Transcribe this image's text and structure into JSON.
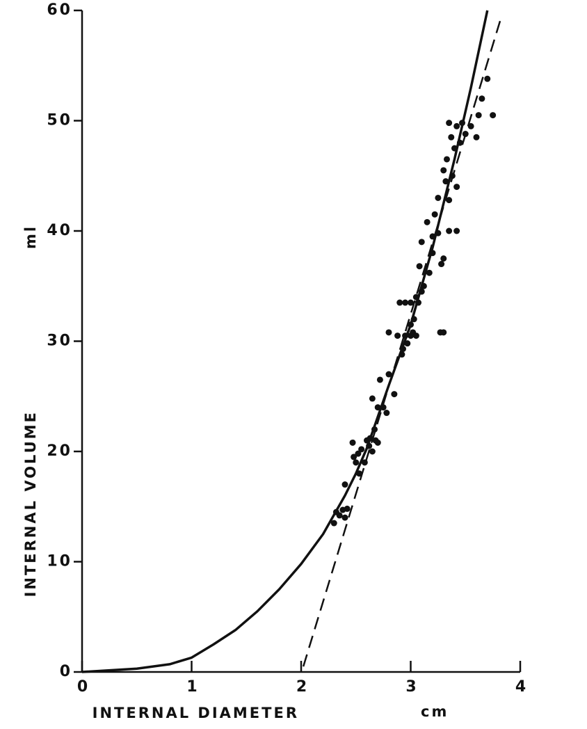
{
  "chart_data": {
    "type": "scatter",
    "x_label": "INTERNAL   DIAMETER",
    "x_unit": "cm",
    "y_label": "INTERNAL   VOLUME",
    "y_unit": "ml",
    "xlim": [
      0,
      4
    ],
    "ylim": [
      0,
      60
    ],
    "xticks": [
      0,
      1,
      2,
      3,
      4
    ],
    "yticks": [
      0,
      10,
      20,
      30,
      40,
      50,
      60
    ],
    "grid": false,
    "series": [
      {
        "style": "points",
        "color": "#111111",
        "x": [
          2.3,
          2.32,
          2.35,
          2.38,
          2.4,
          2.42,
          2.4,
          2.47,
          2.48,
          2.5,
          2.52,
          2.53,
          2.55,
          2.58,
          2.6,
          2.62,
          2.63,
          2.65,
          2.67,
          2.68,
          2.7,
          2.65,
          2.7,
          2.72,
          2.75,
          2.78,
          2.8,
          2.8,
          2.85,
          2.88,
          2.9,
          2.92,
          2.93,
          2.95,
          2.95,
          2.97,
          3.0,
          3.0,
          3.0,
          3.02,
          3.03,
          3.05,
          3.05,
          3.07,
          3.08,
          3.1,
          3.1,
          3.12,
          3.15,
          3.17,
          3.2,
          3.2,
          3.22,
          3.25,
          3.25,
          3.27,
          3.3,
          3.28,
          3.3,
          3.3,
          3.32,
          3.33,
          3.35,
          3.35,
          3.35,
          3.37,
          3.38,
          3.4,
          3.42,
          3.42,
          3.42,
          3.45,
          3.47,
          3.5,
          3.55,
          3.6,
          3.62,
          3.65,
          3.7,
          3.75
        ],
        "values": [
          13.5,
          14.5,
          14.2,
          14.7,
          14,
          14.8,
          17,
          20.8,
          19.5,
          19,
          19.8,
          18,
          20.2,
          19,
          21,
          20.5,
          21.2,
          20,
          22,
          21,
          20.8,
          24.8,
          24,
          26.5,
          24,
          23.5,
          27,
          30.8,
          25.2,
          30.5,
          33.5,
          28.8,
          29.3,
          30.5,
          33.5,
          29.8,
          30.5,
          31.5,
          33.5,
          30.8,
          32,
          30.5,
          34,
          33.5,
          36.8,
          34.5,
          39,
          35,
          40.8,
          36.2,
          38,
          39.5,
          41.5,
          43,
          39.8,
          30.8,
          30.8,
          37,
          37.5,
          45.5,
          44.5,
          46.5,
          40,
          42.8,
          49.8,
          48.5,
          45,
          47.5,
          40,
          44,
          49.5,
          48,
          49.8,
          48.8,
          49.5,
          48.5,
          50.5,
          52,
          53.8,
          50.5
        ]
      },
      {
        "style": "solid",
        "color": "#111111",
        "x": [
          0,
          0.5,
          0.8,
          1,
          1.2,
          1.4,
          1.6,
          1.8,
          2,
          2.2,
          2.4,
          2.5,
          2.6,
          2.8,
          3.0,
          3.2,
          3.4,
          3.55,
          3.7
        ],
        "values": [
          0,
          0.3,
          0.7,
          1.3,
          2.5,
          3.8,
          5.5,
          7.5,
          9.8,
          12.5,
          16,
          18,
          20.3,
          26,
          31.5,
          38.5,
          46.5,
          53,
          60
        ]
      },
      {
        "style": "dashed",
        "color": "#111111",
        "x": [
          2.02,
          3.83
        ],
        "values": [
          0.5,
          59.5
        ]
      }
    ]
  }
}
